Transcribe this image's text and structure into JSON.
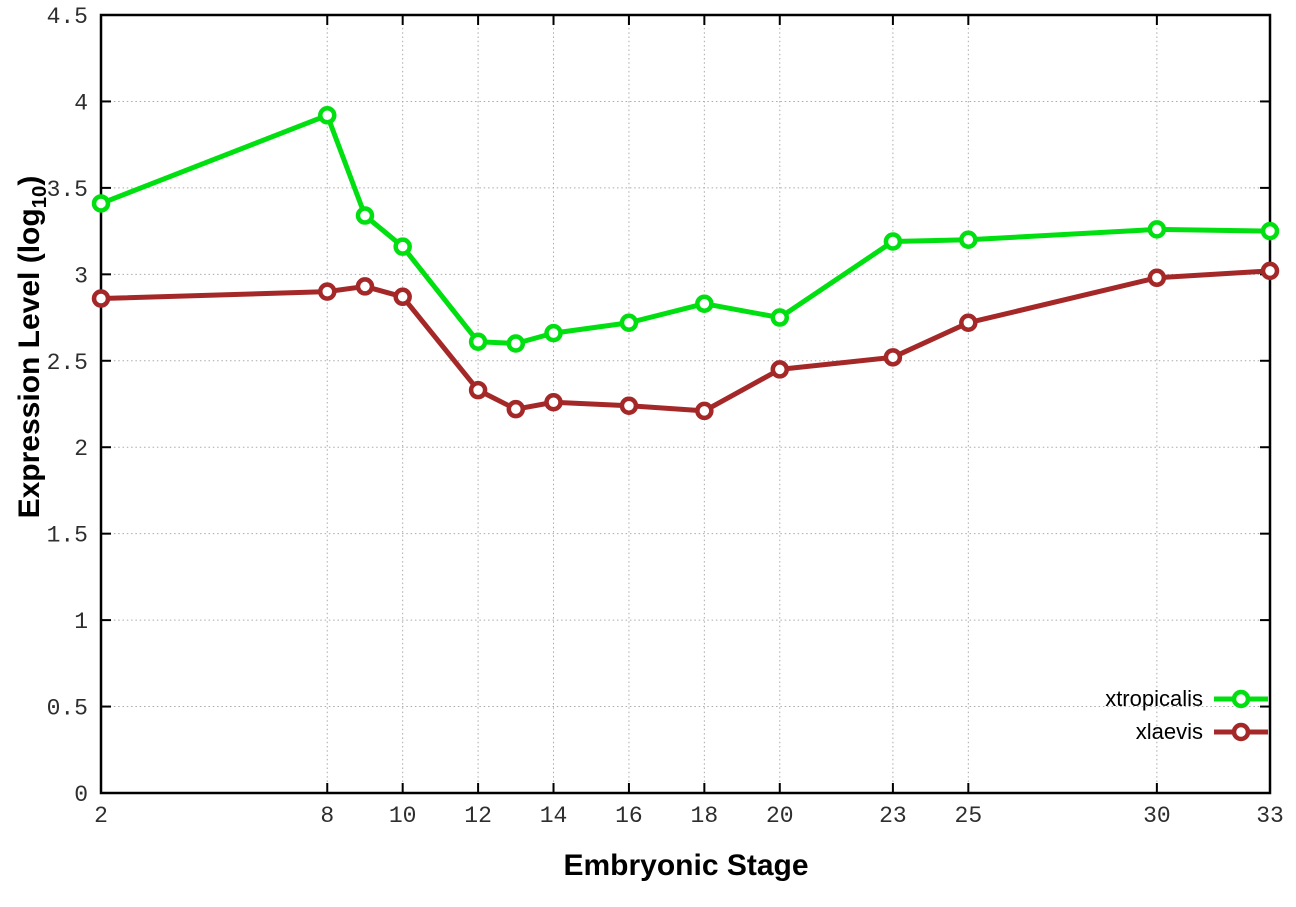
{
  "chart_data": {
    "type": "line",
    "title": "",
    "xlabel": "Embryonic Stage",
    "ylabel": "Expression Level (log10)",
    "x": [
      2,
      8,
      9,
      10,
      12,
      13,
      14,
      16,
      18,
      20,
      23,
      25,
      30,
      33
    ],
    "series": [
      {
        "name": "xtropicalis",
        "color": "#00df10",
        "marker": "open-circle",
        "values": [
          3.41,
          3.92,
          3.34,
          3.16,
          2.61,
          2.6,
          2.66,
          2.72,
          2.83,
          2.75,
          3.19,
          3.2,
          3.26,
          3.25
        ]
      },
      {
        "name": "xlaevis",
        "color": "#a52828",
        "marker": "open-circle",
        "values": [
          2.86,
          2.9,
          2.93,
          2.87,
          2.33,
          2.22,
          2.26,
          2.24,
          2.21,
          2.45,
          2.52,
          2.72,
          2.98,
          3.02
        ]
      }
    ],
    "xlim": [
      2,
      33
    ],
    "ylim": [
      0,
      4.5
    ],
    "x_ticks": [
      2,
      8,
      10,
      12,
      14,
      16,
      18,
      20,
      23,
      25,
      30,
      33
    ],
    "y_ticks": [
      0,
      0.5,
      1,
      1.5,
      2,
      2.5,
      3,
      3.5,
      4,
      4.5
    ],
    "grid": true,
    "legend_position": "bottom-right-inside"
  },
  "axes": {
    "x_title": "Embryonic Stage",
    "y_title_pre": "Expression Level (log",
    "y_title_sub": "10",
    "y_title_post": ")"
  },
  "colors": {
    "grid": "#ababab",
    "border": "#000000",
    "tick_label": "#2e2e2e",
    "marker_fill": "#ffffff"
  }
}
